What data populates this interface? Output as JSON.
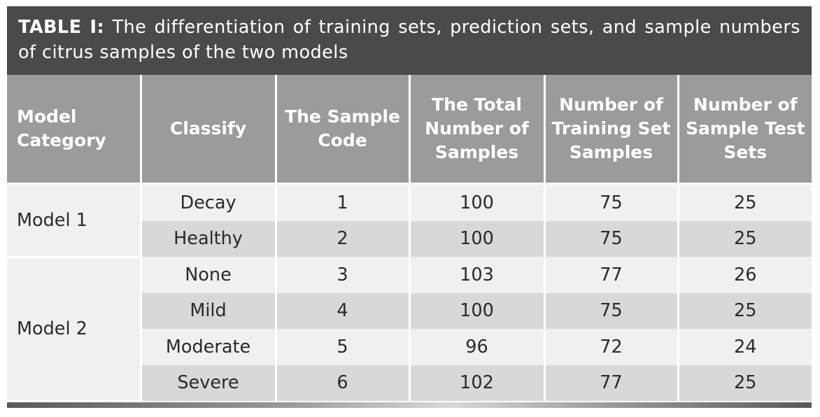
{
  "caption": {
    "label": "TABLE I:",
    "text": " The differentiation of training sets, prediction sets, and sample numbers of citrus samples of the two models"
  },
  "table": {
    "headers": [
      "Model Category",
      "Classify",
      "The Sample Code",
      "The Total Number of Samples",
      "Number of Training Set Samples",
      "Number of Sample Test Sets"
    ],
    "groups": [
      {
        "model": "Model 1",
        "rows": [
          {
            "classify": "Decay",
            "code": "1",
            "total": "100",
            "training": "75",
            "test": "25"
          },
          {
            "classify": "Healthy",
            "code": "2",
            "total": "100",
            "training": "75",
            "test": "25"
          }
        ]
      },
      {
        "model": "Model 2",
        "rows": [
          {
            "classify": "None",
            "code": "3",
            "total": "103",
            "training": "77",
            "test": "26"
          },
          {
            "classify": "Mild",
            "code": "4",
            "total": "100",
            "training": "75",
            "test": "25"
          },
          {
            "classify": "Moderate",
            "code": "5",
            "total": "96",
            "training": "72",
            "test": "24"
          },
          {
            "classify": "Severe",
            "code": "6",
            "total": "102",
            "training": "77",
            "test": "25"
          }
        ]
      }
    ]
  },
  "colors": {
    "caption_bg": "#4a4a4a",
    "header_bg": "#9b9b9b",
    "row_light": "#f0f0f0",
    "row_dark": "#d8d8d8"
  }
}
